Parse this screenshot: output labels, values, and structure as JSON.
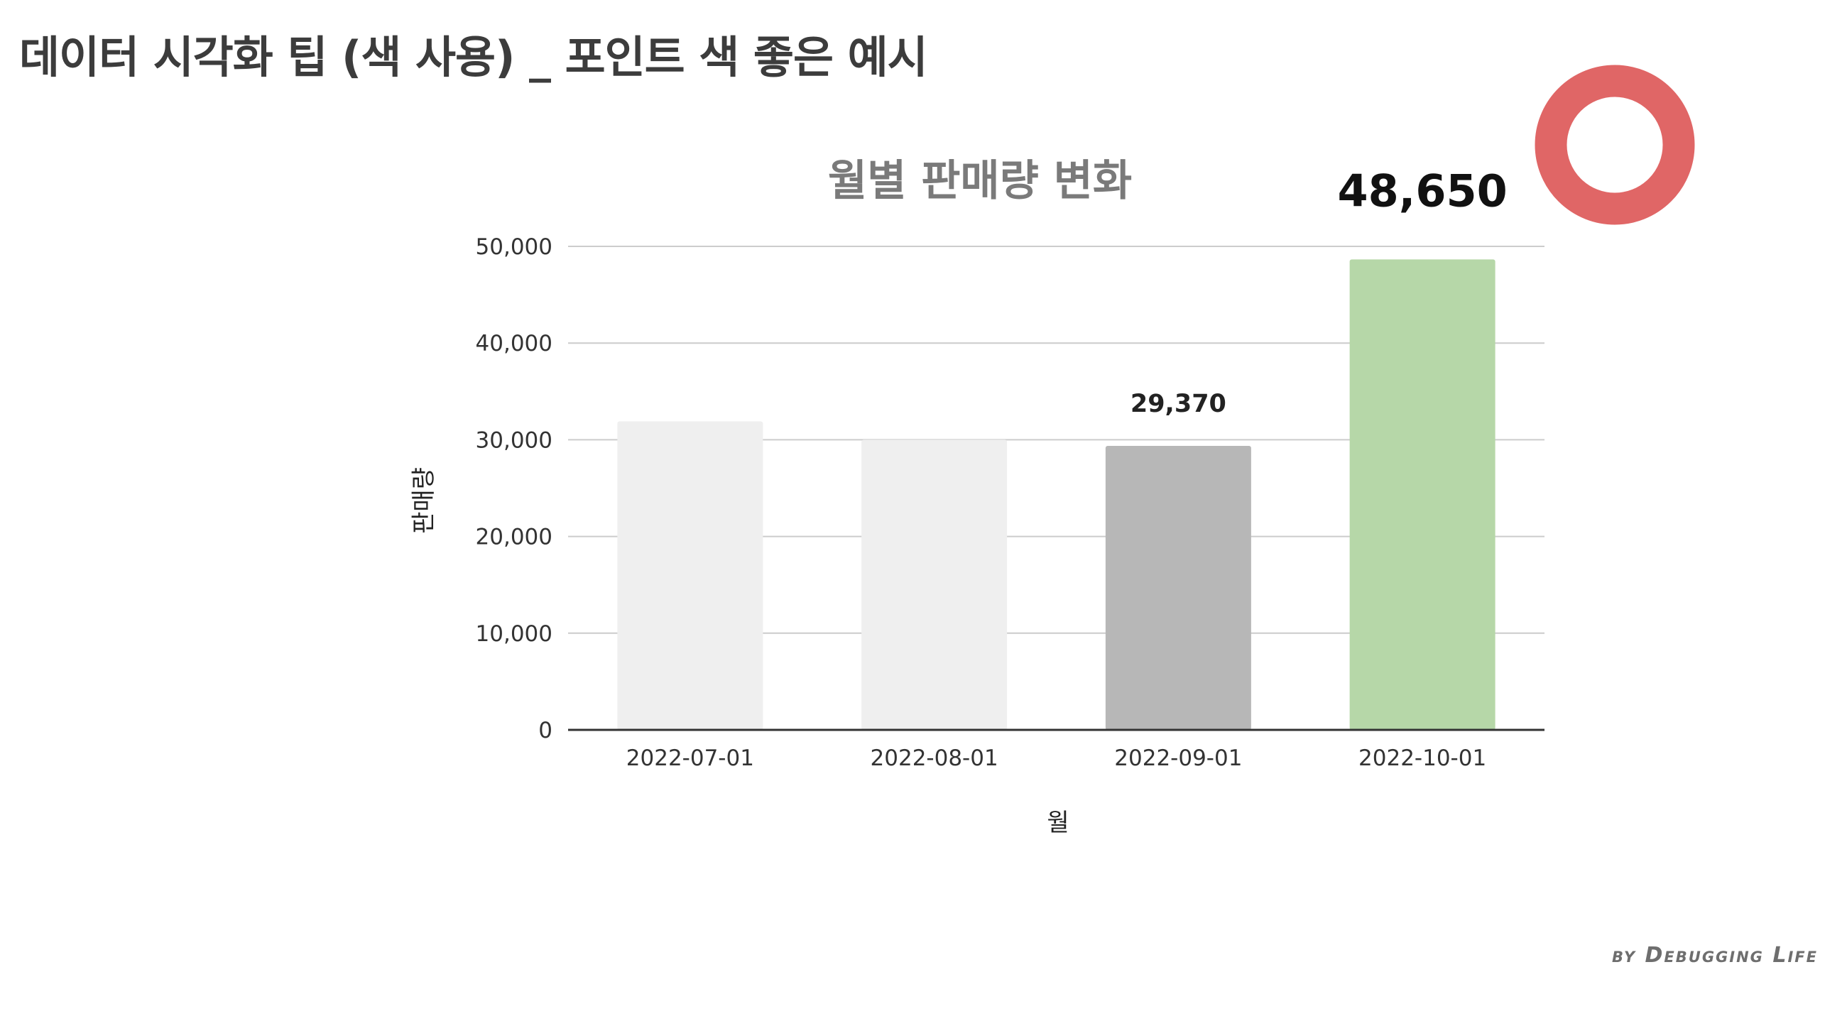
{
  "page": {
    "title": "데이터 시각화 팁 (색 사용) _ 포인트 색 좋은 예시",
    "credit": "by Debugging Life"
  },
  "colors": {
    "muted_bar": "#efefef",
    "secondary_bar": "#b7b7b7",
    "highlight_bar": "#b6d7a8",
    "good_marker": "#e06666",
    "gridline": "#cccccc",
    "baseline": "#333333"
  },
  "icons": {
    "good_marker": "red-circle-o-icon"
  },
  "chart_data": {
    "type": "bar",
    "title": "월별 판매량 변화",
    "xlabel": "월",
    "ylabel": "판매량",
    "categories": [
      "2022-07-01",
      "2022-08-01",
      "2022-09-01",
      "2022-10-01"
    ],
    "values": [
      31900,
      30000,
      29370,
      48650
    ],
    "bar_colors": [
      "#efefef",
      "#efefef",
      "#b7b7b7",
      "#b6d7a8"
    ],
    "data_labels": [
      {
        "index": 2,
        "text": "29,370",
        "emphasis": "normal"
      },
      {
        "index": 3,
        "text": "48,650",
        "emphasis": "large"
      }
    ],
    "ylim": [
      0,
      50000
    ],
    "yticks": [
      0,
      10000,
      20000,
      30000,
      40000,
      50000
    ],
    "ytick_labels": [
      "0",
      "10,000",
      "20,000",
      "30,000",
      "40,000",
      "50,000"
    ],
    "grid": true,
    "legend": "none"
  }
}
